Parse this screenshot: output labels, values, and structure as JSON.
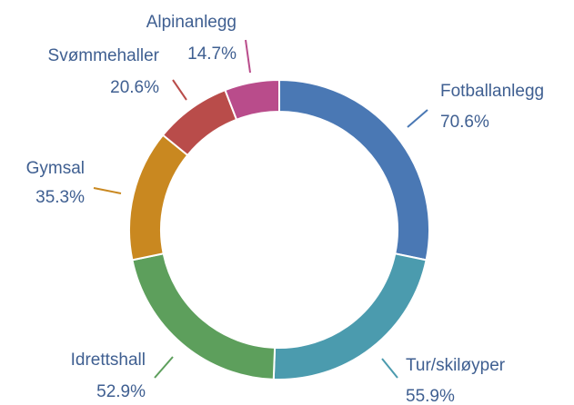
{
  "chart_data": {
    "type": "pie",
    "categories": [
      "Fotballanlegg",
      "Tur/skiløyper",
      "Idrettshall",
      "Gymsal",
      "Svømmehaller",
      "Alpinanlegg"
    ],
    "values": [
      70.6,
      55.9,
      52.9,
      35.3,
      20.6,
      14.7
    ],
    "value_labels": [
      "70.6%",
      "55.9%",
      "52.9%",
      "35.3%",
      "20.6%",
      "14.7%"
    ],
    "colors": [
      "#4a78b4",
      "#4b9bae",
      "#5d9f5c",
      "#c98820",
      "#b94c4a",
      "#b94c8b"
    ],
    "donut": true
  }
}
